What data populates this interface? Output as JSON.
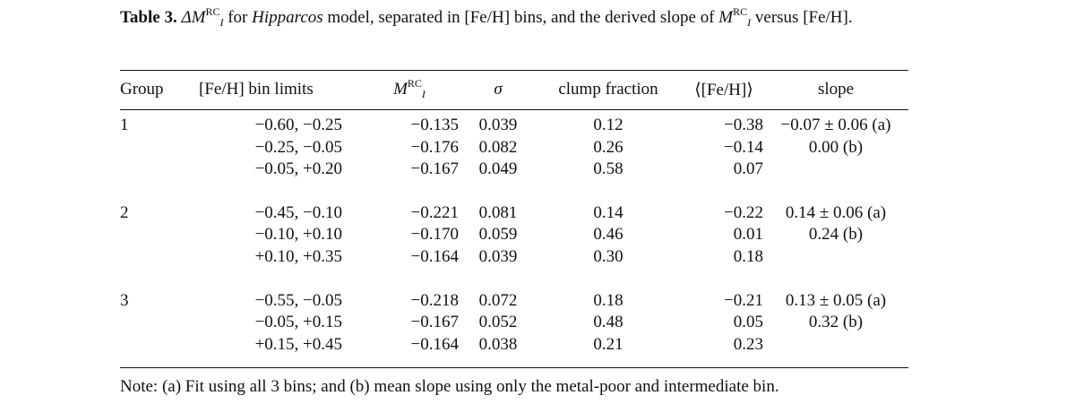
{
  "caption": {
    "label": "Table 3.",
    "delta": "ΔM",
    "sub_i": "I",
    "sup_rc": "RC",
    "text_1": " for ",
    "model": "Hipparcos",
    "text_2": " model, separated in [Fe/H] bins, and the derived slope of ",
    "m": "M",
    "text_3": " versus [Fe/H]."
  },
  "headers": {
    "group": "Group",
    "bin_limits": "[Fe/H] bin limits",
    "m": "M",
    "m_sub": "I",
    "m_sup": "RC",
    "sigma": "σ",
    "clump_fraction": "clump fraction",
    "mean_feh": "⟨[Fe/H]⟩",
    "slope": "slope"
  },
  "groups": [
    {
      "id": "1",
      "rows": [
        {
          "bin": "−0.60, −0.25",
          "m": "−0.135",
          "sigma": "0.039",
          "frac": "0.12",
          "mean": "−0.38",
          "slope": "−0.07 ± 0.06 (a)"
        },
        {
          "bin": "−0.25, −0.05",
          "m": "−0.176",
          "sigma": "0.082",
          "frac": "0.26",
          "mean": "−0.14",
          "slope": "0.00 (b)"
        },
        {
          "bin": "−0.05, +0.20",
          "m": "−0.167",
          "sigma": "0.049",
          "frac": "0.58",
          "mean": "0.07",
          "slope": ""
        }
      ]
    },
    {
      "id": "2",
      "rows": [
        {
          "bin": "−0.45, −0.10",
          "m": "−0.221",
          "sigma": "0.081",
          "frac": "0.14",
          "mean": "−0.22",
          "slope": "0.14 ± 0.06 (a)"
        },
        {
          "bin": "−0.10, +0.10",
          "m": "−0.170",
          "sigma": "0.059",
          "frac": "0.46",
          "mean": "0.01",
          "slope": "0.24 (b)"
        },
        {
          "bin": "+0.10, +0.35",
          "m": "−0.164",
          "sigma": "0.039",
          "frac": "0.30",
          "mean": "0.18",
          "slope": ""
        }
      ]
    },
    {
      "id": "3",
      "rows": [
        {
          "bin": "−0.55, −0.05",
          "m": "−0.218",
          "sigma": "0.072",
          "frac": "0.18",
          "mean": "−0.21",
          "slope": "0.13 ± 0.05 (a)"
        },
        {
          "bin": "−0.05, +0.15",
          "m": "−0.167",
          "sigma": "0.052",
          "frac": "0.48",
          "mean": "0.05",
          "slope": "0.32 (b)"
        },
        {
          "bin": "+0.15, +0.45",
          "m": "−0.164",
          "sigma": "0.038",
          "frac": "0.21",
          "mean": "0.23",
          "slope": ""
        }
      ]
    }
  ],
  "note": "Note: (a) Fit using all 3 bins; and (b) mean slope using only the metal-poor and intermediate bin."
}
